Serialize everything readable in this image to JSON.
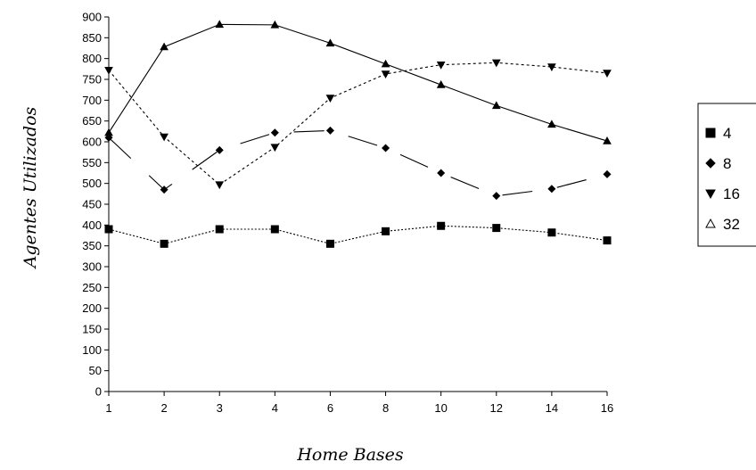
{
  "chart_data": {
    "type": "line",
    "xlabel": "Home Bases",
    "ylabel": "Agentes Utilizados",
    "categories": [
      "1",
      "2",
      "3",
      "4",
      "6",
      "8",
      "10",
      "12",
      "14",
      "16"
    ],
    "ylim": [
      0,
      900
    ],
    "yticks": [
      0,
      50,
      100,
      150,
      200,
      250,
      300,
      350,
      400,
      450,
      500,
      550,
      600,
      650,
      700,
      750,
      800,
      850,
      900
    ],
    "grid": false,
    "legend_position": "right",
    "series": [
      {
        "name": "4",
        "marker": "square",
        "dash": "2,2",
        "values": [
          390,
          355,
          390,
          390,
          355,
          385,
          398,
          393,
          382,
          363
        ]
      },
      {
        "name": "8",
        "marker": "diamond",
        "dash": "34,28",
        "values": [
          610,
          485,
          580,
          622,
          627,
          585,
          525,
          470,
          487,
          522
        ]
      },
      {
        "name": "16",
        "marker": "triangle-down",
        "dash": "3,3",
        "values": [
          772,
          612,
          497,
          587,
          705,
          763,
          785,
          790,
          780,
          765
        ]
      },
      {
        "name": "32",
        "marker": "triangle-up",
        "dash": "",
        "values": [
          622,
          828,
          882,
          881,
          837,
          787,
          737,
          687,
          642,
          602
        ]
      }
    ]
  }
}
